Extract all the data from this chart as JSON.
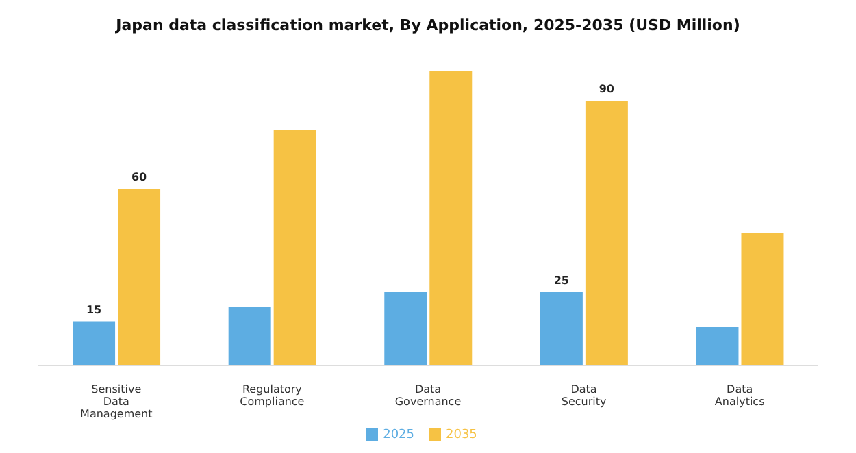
{
  "chart_data": {
    "type": "bar",
    "title": "Japan data classification market, By Application, 2025-2035 (USD Million)",
    "categories": [
      "Sensitive Data Management",
      "Regulatory Compliance",
      "Data Governance",
      "Data Security",
      "Data Analytics"
    ],
    "series": [
      {
        "name": "2025",
        "color": "#5dade2",
        "values": [
          15,
          20,
          25,
          25,
          13
        ],
        "value_labels": [
          "15",
          null,
          null,
          "25",
          null
        ]
      },
      {
        "name": "2035",
        "color": "#f6c244",
        "values": [
          60,
          80,
          100,
          90,
          45
        ],
        "value_labels": [
          "60",
          null,
          null,
          "90",
          null
        ]
      }
    ],
    "legend": "bottom",
    "grid": false
  }
}
